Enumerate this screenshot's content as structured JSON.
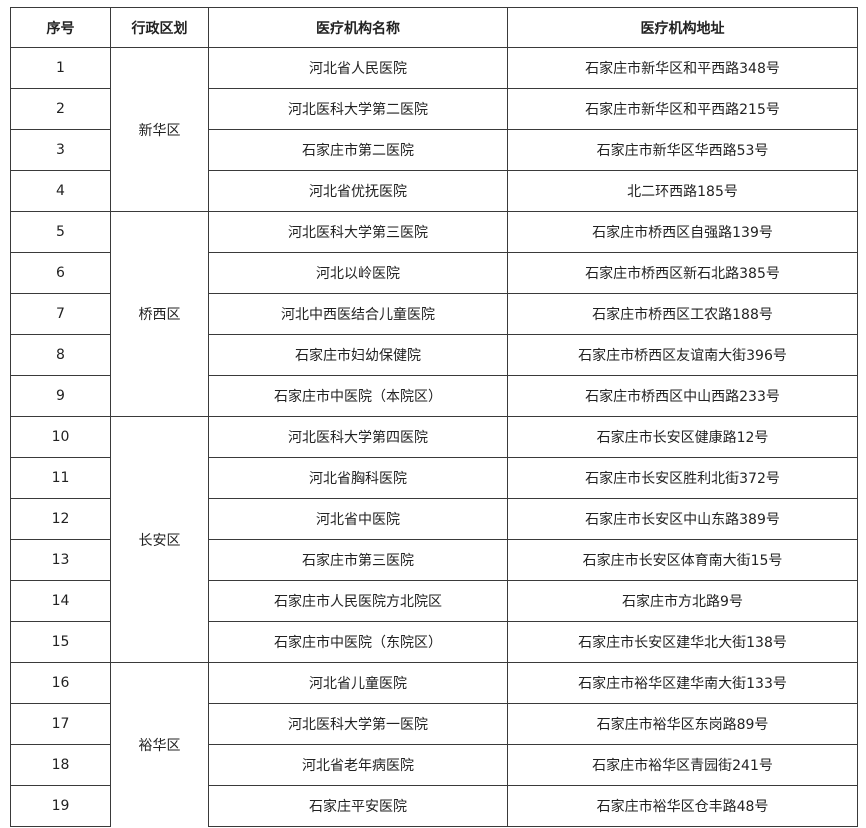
{
  "headers": [
    "序号",
    "行政区划",
    "医疗机构名称",
    "医疗机构地址"
  ],
  "districts": [
    {
      "name": "新华区",
      "rows": [
        {
          "no": "1",
          "name": "河北省人民医院",
          "address": "石家庄市新华区和平西路348号"
        },
        {
          "no": "2",
          "name": "河北医科大学第二医院",
          "address": "石家庄市新华区和平西路215号"
        },
        {
          "no": "3",
          "name": "石家庄市第二医院",
          "address": "石家庄市新华区华西路53号"
        },
        {
          "no": "4",
          "name": "河北省优抚医院",
          "address": "北二环西路185号"
        }
      ]
    },
    {
      "name": "桥西区",
      "rows": [
        {
          "no": "5",
          "name": "河北医科大学第三医院",
          "address": "石家庄市桥西区自强路139号"
        },
        {
          "no": "6",
          "name": "河北以岭医院",
          "address": "石家庄市桥西区新石北路385号"
        },
        {
          "no": "7",
          "name": "河北中西医结合儿童医院",
          "address": "石家庄市桥西区工农路188号"
        },
        {
          "no": "8",
          "name": "石家庄市妇幼保健院",
          "address": "石家庄市桥西区友谊南大街396号"
        },
        {
          "no": "9",
          "name": "石家庄市中医院（本院区）",
          "address": "石家庄市桥西区中山西路233号"
        }
      ]
    },
    {
      "name": "长安区",
      "rows": [
        {
          "no": "10",
          "name": "河北医科大学第四医院",
          "address": "石家庄市长安区健康路12号"
        },
        {
          "no": "11",
          "name": "河北省胸科医院",
          "address": "石家庄市长安区胜利北街372号"
        },
        {
          "no": "12",
          "name": "河北省中医院",
          "address": "石家庄市长安区中山东路389号"
        },
        {
          "no": "13",
          "name": "石家庄市第三医院",
          "address": "石家庄市长安区体育南大街15号"
        },
        {
          "no": "14",
          "name": "石家庄市人民医院方北院区",
          "address": "石家庄市方北路9号"
        },
        {
          "no": "15",
          "name": "石家庄市中医院（东院区）",
          "address": "石家庄市长安区建华北大街138号"
        }
      ]
    },
    {
      "name": "裕华区",
      "rows": [
        {
          "no": "16",
          "name": "河北省儿童医院",
          "address": "石家庄市裕华区建华南大街133号"
        },
        {
          "no": "17",
          "name": "河北医科大学第一医院",
          "address": "石家庄市裕华区东岗路89号"
        },
        {
          "no": "18",
          "name": "河北省老年病医院",
          "address": "石家庄市裕华区青园街241号"
        },
        {
          "no": "19",
          "name": "石家庄平安医院",
          "address": "石家庄市裕华区仓丰路48号"
        }
      ]
    }
  ]
}
